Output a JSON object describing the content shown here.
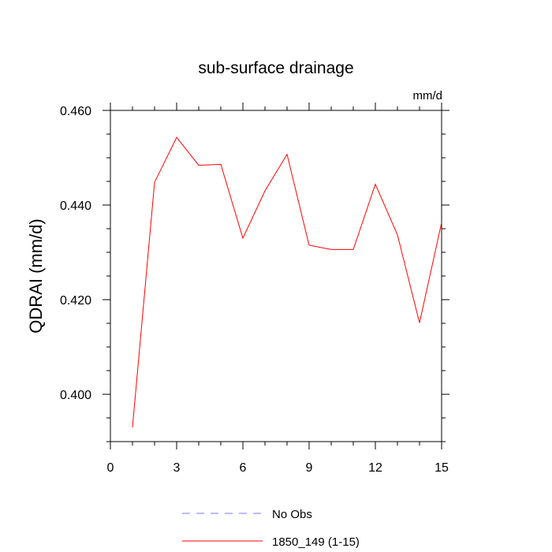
{
  "chart_data": {
    "type": "line",
    "title": "sub-surface drainage",
    "units_label": "mm/d",
    "ylabel": "QDRAI  (mm/d)",
    "xlabel": "",
    "xlim": [
      0,
      15
    ],
    "ylim": [
      0.39,
      0.46
    ],
    "x_ticks": [
      0,
      3,
      6,
      9,
      12,
      15
    ],
    "x_tick_labels": [
      "0",
      "3",
      "6",
      "9",
      "12",
      "15"
    ],
    "y_ticks": [
      0.4,
      0.42,
      0.44,
      0.46
    ],
    "y_tick_labels": [
      "0.400",
      "0.420",
      "0.440",
      "0.460"
    ],
    "grid": false,
    "legend_placement": "bottom",
    "series": [
      {
        "name": "No Obs",
        "color": "#7a7aff",
        "dash": "dashed",
        "x": [],
        "values": []
      },
      {
        "name": "1850_149 (1-15)",
        "color": "#ff0000",
        "dash": "solid",
        "x": [
          1,
          2,
          3,
          4,
          5,
          6,
          7,
          8,
          9,
          10,
          11,
          12,
          13,
          14,
          15
        ],
        "values": [
          0.393,
          0.4448,
          0.4543,
          0.4484,
          0.4486,
          0.433,
          0.443,
          0.4507,
          0.4315,
          0.4306,
          0.4306,
          0.4444,
          0.4337,
          0.4151,
          0.4363
        ]
      }
    ]
  }
}
